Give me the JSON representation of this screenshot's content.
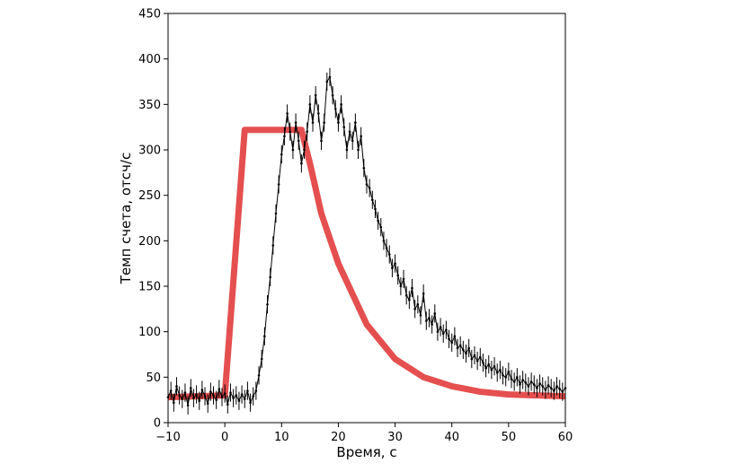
{
  "chart_data": {
    "type": "scatter",
    "xlabel": "Время, с",
    "ylabel": "Темп счета, отсч/с",
    "xlim": [
      -10,
      60
    ],
    "ylim": [
      0,
      450
    ],
    "xticks": [
      -10,
      0,
      10,
      20,
      30,
      40,
      50,
      60
    ],
    "yticks": [
      0,
      50,
      100,
      150,
      200,
      250,
      300,
      350,
      400,
      450
    ],
    "grid": false,
    "legend": "none",
    "colors": {
      "data": "#000000",
      "model": "#e03030"
    },
    "series": [
      {
        "kind": "points-with-error-bars",
        "x_start": -10,
        "x_step": 0.5,
        "y": [
          28,
          35,
          22,
          40,
          30,
          26,
          33,
          19,
          38,
          27,
          31,
          24,
          36,
          29,
          21,
          34,
          30,
          25,
          37,
          28,
          32,
          20,
          33,
          27,
          30,
          24,
          31,
          26,
          35,
          22,
          29,
          35,
          52,
          70,
          95,
          130,
          160,
          195,
          230,
          262,
          295,
          315,
          340,
          320,
          300,
          330,
          310,
          285,
          300,
          320,
          350,
          330,
          360,
          340,
          310,
          330,
          375,
          380,
          360,
          345,
          330,
          350,
          325,
          300,
          320,
          310,
          330,
          300,
          315,
          280,
          262,
          258,
          245,
          235,
          222,
          215,
          200,
          192,
          185,
          170,
          175,
          162,
          150,
          158,
          140,
          135,
          148,
          125,
          130,
          118,
          142,
          112,
          115,
          108,
          120,
          100,
          105,
          98,
          102,
          92,
          88,
          95,
          82,
          85,
          80,
          76,
          82,
          70,
          74,
          68,
          72,
          66,
          60,
          64,
          58,
          62,
          55,
          58,
          52,
          50,
          56,
          48,
          45,
          50,
          42,
          47,
          44,
          40,
          45,
          42,
          38,
          43,
          40,
          36,
          41,
          38,
          35,
          40,
          37,
          34,
          38,
          32,
          36,
          30,
          35,
          40,
          31,
          29,
          37,
          33,
          28,
          34,
          30,
          36,
          31,
          27,
          33,
          29,
          35,
          30,
          26,
          32,
          38,
          28,
          34,
          30,
          27,
          33,
          29,
          36,
          31,
          25,
          34,
          30,
          28,
          35,
          32,
          27,
          31,
          37,
          29,
          33,
          30,
          26,
          34,
          31,
          28,
          35,
          30,
          32,
          27,
          29,
          33,
          31,
          30,
          36,
          28,
          32,
          30,
          34,
          29,
          31,
          33,
          30,
          28
        ],
        "err": 10
      },
      {
        "kind": "model-line",
        "x": [
          -10,
          0,
          3.5,
          13.5,
          15,
          17,
          20,
          25,
          30,
          35,
          40,
          45,
          50,
          55,
          60
        ],
        "y": [
          28,
          30,
          322,
          322,
          285,
          230,
          175,
          108,
          70,
          50,
          40,
          34,
          31,
          30,
          29
        ]
      }
    ]
  }
}
